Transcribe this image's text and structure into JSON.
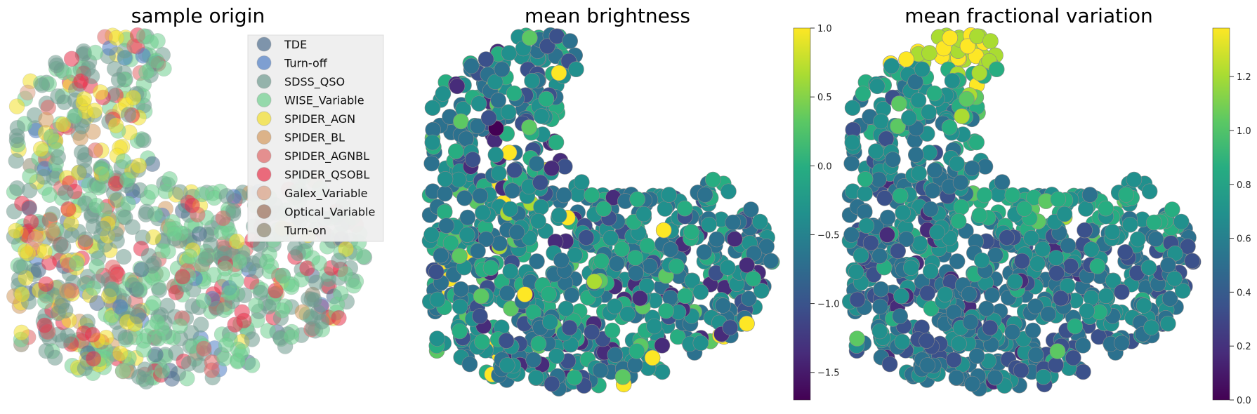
{
  "chart_data": [
    {
      "type": "scatter",
      "title": "sample origin",
      "legend_position": "top-right",
      "note_points": "embedding cloud of ~1000 sources colored by catalogue origin",
      "series": [
        {
          "name": "TDE",
          "color": "#4f6d8f"
        },
        {
          "name": "Turn-off",
          "color": "#4e7ec4"
        },
        {
          "name": "SDSS_QSO",
          "color": "#6e9a8e"
        },
        {
          "name": "WISE_Variable",
          "color": "#6fd08f"
        },
        {
          "name": "SPIDER_AGN",
          "color": "#f3e02a"
        },
        {
          "name": "SPIDER_BL",
          "color": "#d49a5e"
        },
        {
          "name": "SPIDER_AGNBL",
          "color": "#e06666"
        },
        {
          "name": "SPIDER_QSOBL",
          "color": "#e8324a"
        },
        {
          "name": "Galex_Variable",
          "color": "#dca185"
        },
        {
          "name": "Optical_Variable",
          "color": "#9a6e58"
        },
        {
          "name": "Turn-on",
          "color": "#8f8870"
        }
      ]
    },
    {
      "type": "scatter",
      "title": "mean brightness",
      "colorbar": {
        "min": -1.7,
        "max": 1.0,
        "ticks": [
          "1.0",
          "0.5",
          "0.0",
          "−0.5",
          "−1.0",
          "−1.5"
        ],
        "tick_values": [
          1.0,
          0.5,
          0.0,
          -0.5,
          -1.0,
          -1.5
        ],
        "colormap": "viridis"
      }
    },
    {
      "type": "scatter",
      "title": "mean fractional variation",
      "colorbar": {
        "min": 0.0,
        "max": 1.38,
        "ticks": [
          "1.2",
          "1.0",
          "0.8",
          "0.6",
          "0.4",
          "0.2",
          "0.0"
        ],
        "tick_values": [
          1.2,
          1.0,
          0.8,
          0.6,
          0.4,
          0.2,
          0.0
        ],
        "colormap": "viridis"
      }
    }
  ],
  "colors": {
    "viridis": [
      "#440154",
      "#472c7a",
      "#3b518b",
      "#2c718e",
      "#21908d",
      "#27ad81",
      "#5cc863",
      "#aadc32",
      "#fde725"
    ]
  }
}
